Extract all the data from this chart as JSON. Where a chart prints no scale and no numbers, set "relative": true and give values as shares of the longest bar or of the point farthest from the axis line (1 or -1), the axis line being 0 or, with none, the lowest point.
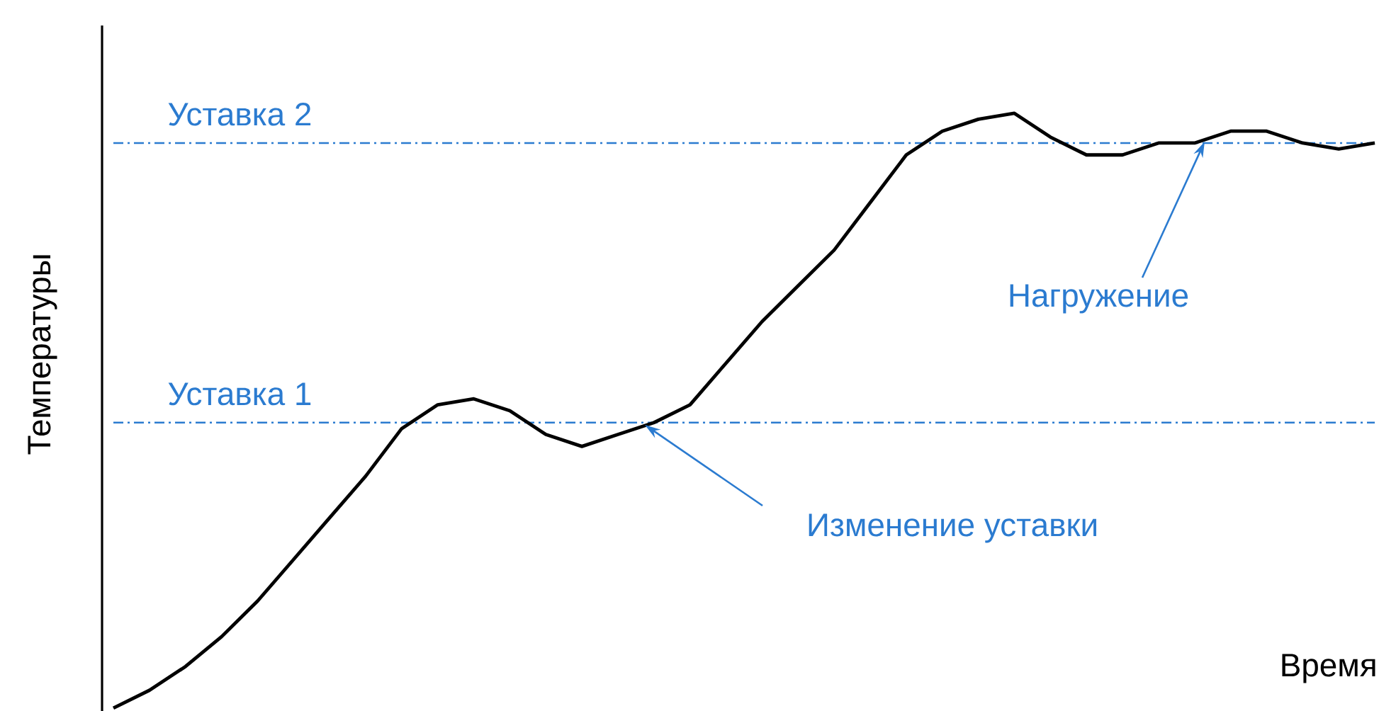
{
  "chart_data": {
    "type": "line",
    "relative": true,
    "xlabel": "Время",
    "ylabel": "Температуры",
    "categories": [
      null,
      null,
      null,
      null,
      null,
      null,
      null,
      null,
      null,
      null,
      null,
      null,
      null,
      null,
      null,
      null,
      null,
      null,
      null,
      null,
      null,
      null,
      null,
      null,
      null,
      null,
      null,
      null,
      null,
      null,
      null,
      null,
      null,
      null,
      null,
      null
    ],
    "series": [
      {
        "color": "#000000",
        "values": [
          0,
          0.03,
          0.07,
          0.12,
          0.18,
          0.25,
          0.32,
          0.39,
          0.47,
          0.51,
          0.52,
          0.5,
          0.46,
          0.44,
          0.46,
          0.48,
          0.51,
          0.58,
          0.65,
          0.71,
          0.77,
          0.85,
          0.93,
          0.97,
          0.99,
          1,
          0.96,
          0.93,
          0.93,
          0.95,
          0.95,
          0.97,
          0.97,
          0.95,
          0.94,
          0.95
        ]
      }
    ],
    "ref_lines": [
      {
        "axis": "y",
        "value": 0.48,
        "label": "Уставка 1",
        "color": "#2b7bd0",
        "line_style": "dashed"
      },
      {
        "axis": "y",
        "value": 0.95,
        "label": "Уставка 2",
        "color": "#2b7bd0",
        "line_style": "dashed"
      }
    ],
    "annotations": [
      "Изменение уставки",
      "Нагружение"
    ]
  }
}
